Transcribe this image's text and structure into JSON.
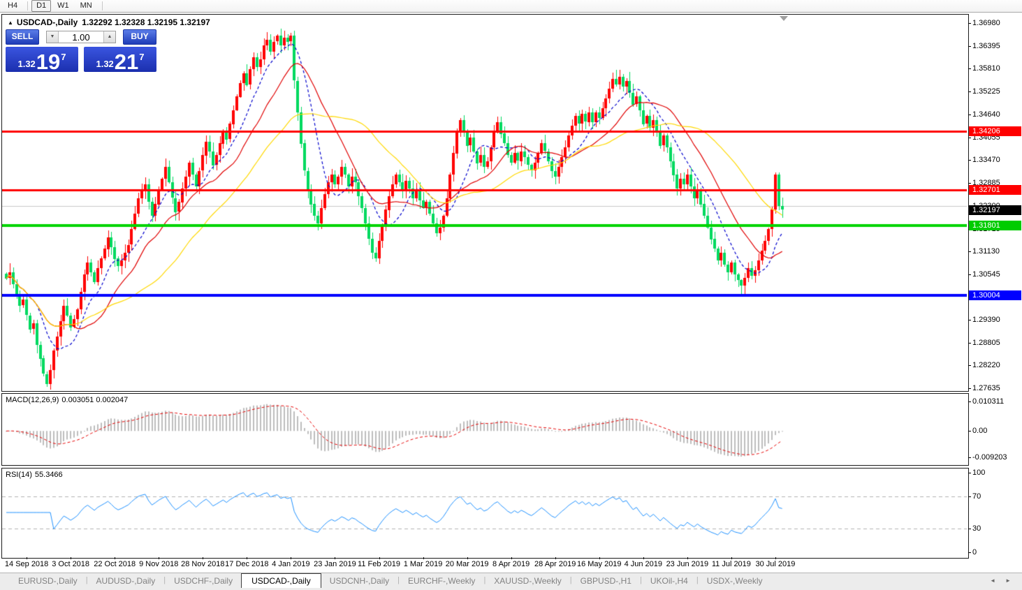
{
  "toolbar": {
    "timeframes": [
      "H4",
      "D1",
      "W1",
      "MN"
    ],
    "active": "D1"
  },
  "chart": {
    "collapse_arrow": "▲",
    "title": "USDCAD-,Daily",
    "ohlc": "1.32292 1.32328 1.32195 1.32197",
    "trade_panel": {
      "sell_label": "SELL",
      "buy_label": "BUY",
      "volume": "1.00",
      "spinner_down": "▼",
      "spinner_up": "▲",
      "sell_price": {
        "prefix": "1.32",
        "main": "19",
        "sup": "7"
      },
      "buy_price": {
        "prefix": "1.32",
        "main": "21",
        "sup": "7"
      }
    }
  },
  "chart_data": {
    "type": "candlestick",
    "symbol": "USDCAD",
    "timeframe": "Daily",
    "title": "USDCAD-,Daily",
    "ohlc_display": {
      "open": "1.32292",
      "high": "1.32328",
      "low": "1.32195",
      "close": "1.32197"
    },
    "up_color": "#ff0000",
    "down_color": "#00d95f",
    "price_range": [
      1.27599,
      1.37194
    ],
    "grid_line_price": 1.323,
    "closes": [
      1.3045,
      1.306,
      1.303,
      1.3,
      1.2975,
      1.299,
      1.295,
      1.2915,
      1.293,
      1.2875,
      1.284,
      1.28,
      1.2775,
      1.281,
      1.286,
      1.2895,
      1.2935,
      1.2975,
      1.295,
      1.292,
      1.294,
      1.2965,
      1.301,
      1.3055,
      1.3085,
      1.306,
      1.3035,
      1.307,
      1.3095,
      1.312,
      1.315,
      1.3125,
      1.3095,
      1.3075,
      1.309,
      1.311,
      1.313,
      1.317,
      1.321,
      1.325,
      1.327,
      1.3285,
      1.324,
      1.3205,
      1.3235,
      1.327,
      1.33,
      1.333,
      1.329,
      1.325,
      1.3215,
      1.324,
      1.3275,
      1.3305,
      1.334,
      1.331,
      1.328,
      1.332,
      1.336,
      1.3395,
      1.337,
      1.3335,
      1.336,
      1.339,
      1.342,
      1.34,
      1.344,
      1.3475,
      1.351,
      1.3545,
      1.357,
      1.354,
      1.358,
      1.361,
      1.3585,
      1.3605,
      1.364,
      1.3655,
      1.3625,
      1.365,
      1.3665,
      1.364,
      1.366,
      1.365,
      1.3665,
      1.355,
      1.347,
      1.339,
      1.332,
      1.327,
      1.3235,
      1.3205,
      1.3185,
      1.3225,
      1.326,
      1.329,
      1.331,
      1.3285,
      1.3305,
      1.333,
      1.331,
      1.328,
      1.3305,
      1.329,
      1.3255,
      1.3225,
      1.3185,
      1.3145,
      1.311,
      1.3095,
      1.314,
      1.318,
      1.322,
      1.3255,
      1.3285,
      1.331,
      1.329,
      1.327,
      1.3295,
      1.3275,
      1.325,
      1.327,
      1.3245,
      1.3225,
      1.324,
      1.321,
      1.3185,
      1.316,
      1.3175,
      1.3205,
      1.325,
      1.331,
      1.3365,
      1.342,
      1.345,
      1.342,
      1.3385,
      1.3405,
      1.337,
      1.334,
      1.336,
      1.333,
      1.3345,
      1.338,
      1.342,
      1.3445,
      1.3415,
      1.339,
      1.336,
      1.334,
      1.3365,
      1.3345,
      1.337,
      1.3355,
      1.3335,
      1.332,
      1.334,
      1.3365,
      1.339,
      1.337,
      1.3345,
      1.332,
      1.3305,
      1.333,
      1.3355,
      1.338,
      1.341,
      1.3435,
      1.346,
      1.344,
      1.3465,
      1.3445,
      1.347,
      1.3445,
      1.347,
      1.3455,
      1.348,
      1.3505,
      1.353,
      1.3555,
      1.354,
      1.356,
      1.3535,
      1.355,
      1.352,
      1.349,
      1.351,
      1.3475,
      1.344,
      1.346,
      1.343,
      1.345,
      1.342,
      1.3385,
      1.341,
      1.338,
      1.3345,
      1.331,
      1.3275,
      1.33,
      1.3285,
      1.331,
      1.328,
      1.325,
      1.327,
      1.3235,
      1.3205,
      1.3175,
      1.3145,
      1.312,
      1.309,
      1.311,
      1.308,
      1.306,
      1.3085,
      1.3055,
      1.304,
      1.3025,
      1.3045,
      1.307,
      1.305,
      1.3065,
      1.309,
      1.3115,
      1.314,
      1.317,
      1.322,
      1.331,
      1.3229,
      1.32197
    ],
    "moving_averages": [
      {
        "period": 10,
        "color": "#0000cc",
        "style": "dashed"
      },
      {
        "period": 20,
        "color": "#e00000",
        "style": "solid"
      },
      {
        "period": 40,
        "color": "#ffd800",
        "style": "solid"
      }
    ],
    "hlines": [
      {
        "price": 1.34206,
        "color": "#ff0000",
        "width": 3,
        "label": "1.34206"
      },
      {
        "price": 1.32701,
        "color": "#ff0000",
        "width": 3,
        "label": "1.32701"
      },
      {
        "price": 1.31801,
        "color": "#00d400",
        "width": 4,
        "label": "1.31801"
      },
      {
        "price": 1.30004,
        "color": "#0000ff",
        "width": 4,
        "label": "1.30004"
      }
    ],
    "current_price": {
      "label": "1.32197",
      "price": 1.32197,
      "badge_color": "#000000"
    },
    "price_axis_labels": [
      {
        "text": "1.36980",
        "price": 1.3698
      },
      {
        "text": "1.36395",
        "price": 1.36395
      },
      {
        "text": "1.35810",
        "price": 1.3581
      },
      {
        "text": "1.35225",
        "price": 1.35225
      },
      {
        "text": "1.34640",
        "price": 1.3464
      },
      {
        "text": "1.34055",
        "price": 1.34055
      },
      {
        "text": "1.33470",
        "price": 1.3347
      },
      {
        "text": "1.32885",
        "price": 1.32885
      },
      {
        "text": "1.32300",
        "price": 1.323
      },
      {
        "text": "1.31715",
        "price": 1.31715
      },
      {
        "text": "1.31130",
        "price": 1.3113
      },
      {
        "text": "1.30545",
        "price": 1.30545
      },
      {
        "text": "1.29390",
        "price": 1.2939
      },
      {
        "text": "1.28805",
        "price": 1.28805
      },
      {
        "text": "1.28220",
        "price": 1.2822
      },
      {
        "text": "1.27635",
        "price": 1.27635
      }
    ],
    "x_labels": [
      "14 Sep 2018",
      "3 Oct 2018",
      "22 Oct 2018",
      "9 Nov 2018",
      "28 Nov 2018",
      "17 Dec 2018",
      "4 Jan 2019",
      "23 Jan 2019",
      "11 Feb 2019",
      "1 Mar 2019",
      "20 Mar 2019",
      "8 Apr 2019",
      "28 Apr 2019",
      "16 May 2019",
      "4 Jun 2019",
      "23 Jun 2019",
      "11 Jul 2019",
      "30 Jul 2019"
    ],
    "candles_per_label": 13,
    "first_label_index": 6,
    "macd": {
      "label": "MACD(12,26,9)",
      "values": "0.003051 0.002047",
      "fast": 12,
      "slow": 26,
      "signal": 9,
      "hist_color": "#bdbdbd",
      "signal_color": "#e60000",
      "axis_labels": [
        {
          "text": "0.010311",
          "value": 0.010311
        },
        {
          "text": "0.00",
          "value": 0
        },
        {
          "text": "-0.009203",
          "value": -0.009203
        }
      ]
    },
    "rsi": {
      "label": "RSI(14)",
      "value": "55.3466",
      "period": 14,
      "color": "#1e90ff",
      "levels": [
        70,
        30
      ],
      "level_color": "#b0b0b0",
      "axis_labels": [
        {
          "text": "100",
          "value": 100
        },
        {
          "text": "70",
          "value": 70
        },
        {
          "text": "30",
          "value": 30
        },
        {
          "text": "0",
          "value": 0
        }
      ]
    }
  },
  "tabs": {
    "items": [
      {
        "label": "EURUSD-,Daily",
        "active": false
      },
      {
        "label": "AUDUSD-,Daily",
        "active": false
      },
      {
        "label": "USDCHF-,Daily",
        "active": false
      },
      {
        "label": "USDCAD-,Daily",
        "active": true
      },
      {
        "label": "USDCNH-,Daily",
        "active": false
      },
      {
        "label": "EURCHF-,Weekly",
        "active": false
      },
      {
        "label": "XAUUSD-,Weekly",
        "active": false
      },
      {
        "label": "GBPUSD-,H1",
        "active": false
      },
      {
        "label": "UKOil-,H4",
        "active": false
      },
      {
        "label": "USDX-,Weekly",
        "active": false
      }
    ],
    "scroll_left": "◄",
    "scroll_right": "►"
  }
}
